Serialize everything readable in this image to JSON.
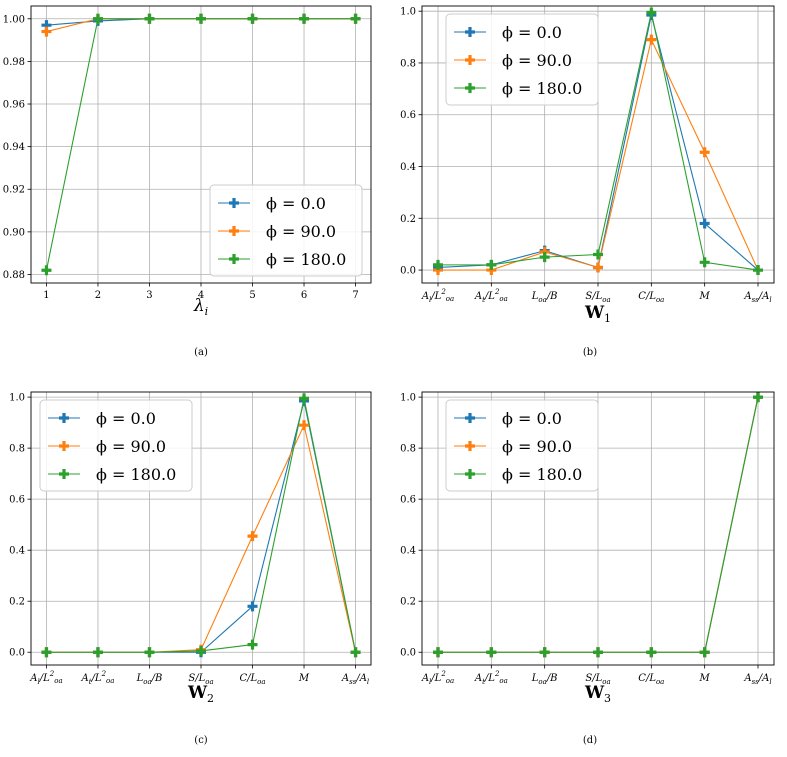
{
  "colors": {
    "s0": "#1f77b4",
    "s1": "#ff7f0e",
    "s2": "#2ca02c",
    "grid": "#b0b0b0"
  },
  "chart_data": [
    {
      "type": "line",
      "caption": "(a)",
      "xlabel": "λ",
      "xlabel_sub": "i",
      "x": [
        1,
        2,
        3,
        4,
        5,
        6,
        7
      ],
      "xlim": [
        0.7,
        7.3
      ],
      "ylim": [
        0.876,
        1.006
      ],
      "yticks": [
        0.88,
        0.9,
        0.92,
        0.94,
        0.96,
        0.98,
        1.0
      ],
      "ytick_labels": [
        "0.88",
        "0.90",
        "0.92",
        "0.94",
        "0.96",
        "0.98",
        "1.00"
      ],
      "legend": "lower-right",
      "grid": true,
      "series": [
        {
          "name": "ϕ = 0.0",
          "values": [
            0.997,
            0.999,
            1.0,
            1.0,
            1.0,
            1.0,
            1.0
          ]
        },
        {
          "name": "ϕ = 90.0",
          "values": [
            0.994,
            1.0,
            1.0,
            1.0,
            1.0,
            1.0,
            1.0
          ]
        },
        {
          "name": "ϕ = 180.0",
          "values": [
            0.882,
            1.0,
            1.0,
            1.0,
            1.0,
            1.0,
            1.0
          ]
        }
      ]
    },
    {
      "type": "line",
      "caption": "(b)",
      "xlabel": "W",
      "xlabel_sub": "1",
      "categories": [
        "A_l/L_oa^2",
        "A_t/L_oa^2",
        "L_oa/B",
        "S/L_oa",
        "C/L_oa",
        "M",
        "A_ss/A_l"
      ],
      "ylim": [
        -0.05,
        1.02
      ],
      "yticks": [
        0.0,
        0.2,
        0.4,
        0.6,
        0.8,
        1.0
      ],
      "ytick_labels": [
        "0.0",
        "0.2",
        "0.4",
        "0.6",
        "0.8",
        "1.0"
      ],
      "legend": "upper-left",
      "grid": true,
      "series": [
        {
          "name": "ϕ = 0.0",
          "values": [
            0.01,
            0.02,
            0.075,
            0.01,
            0.985,
            0.18,
            0.0
          ]
        },
        {
          "name": "ϕ = 90.0",
          "values": [
            0.0,
            0.0,
            0.07,
            0.01,
            0.89,
            0.455,
            0.0
          ]
        },
        {
          "name": "ϕ = 180.0",
          "values": [
            0.02,
            0.02,
            0.05,
            0.06,
            0.995,
            0.03,
            0.0
          ]
        }
      ]
    },
    {
      "type": "line",
      "caption": "(c)",
      "xlabel": "W",
      "xlabel_sub": "2",
      "categories": [
        "A_l/L_oa^2",
        "A_t/L_oa^2",
        "L_oa/B",
        "S/L_oa",
        "C/L_oa",
        "M",
        "A_ss/A_l"
      ],
      "ylim": [
        -0.05,
        1.02
      ],
      "yticks": [
        0.0,
        0.2,
        0.4,
        0.6,
        0.8,
        1.0
      ],
      "ytick_labels": [
        "0.0",
        "0.2",
        "0.4",
        "0.6",
        "0.8",
        "1.0"
      ],
      "legend": "upper-left",
      "grid": true,
      "series": [
        {
          "name": "ϕ = 0.0",
          "values": [
            0.0,
            0.0,
            0.0,
            0.0,
            0.18,
            0.985,
            0.0
          ]
        },
        {
          "name": "ϕ = 90.0",
          "values": [
            0.0,
            0.0,
            0.0,
            0.01,
            0.455,
            0.89,
            0.0
          ]
        },
        {
          "name": "ϕ = 180.0",
          "values": [
            0.0,
            0.0,
            0.0,
            0.005,
            0.03,
            0.995,
            0.0
          ]
        }
      ]
    },
    {
      "type": "line",
      "caption": "(d)",
      "xlabel": "W",
      "xlabel_sub": "3",
      "categories": [
        "A_l/L_oa^2",
        "A_t/L_oa^2",
        "L_oa/B",
        "S/L_oa",
        "C/L_oa",
        "M",
        "A_ss/A_l"
      ],
      "ylim": [
        -0.05,
        1.02
      ],
      "yticks": [
        0.0,
        0.2,
        0.4,
        0.6,
        0.8,
        1.0
      ],
      "ytick_labels": [
        "0.0",
        "0.2",
        "0.4",
        "0.6",
        "0.8",
        "1.0"
      ],
      "legend": "upper-left",
      "grid": true,
      "series": [
        {
          "name": "ϕ = 0.0",
          "values": [
            0.0,
            0.0,
            0.0,
            0.0,
            0.0,
            0.0,
            1.0
          ]
        },
        {
          "name": "ϕ = 90.0",
          "values": [
            0.0,
            0.0,
            0.0,
            0.0,
            0.0,
            0.0,
            1.0
          ]
        },
        {
          "name": "ϕ = 180.0",
          "values": [
            0.0,
            0.0,
            0.0,
            0.0,
            0.0,
            0.0,
            1.0
          ]
        }
      ]
    }
  ]
}
